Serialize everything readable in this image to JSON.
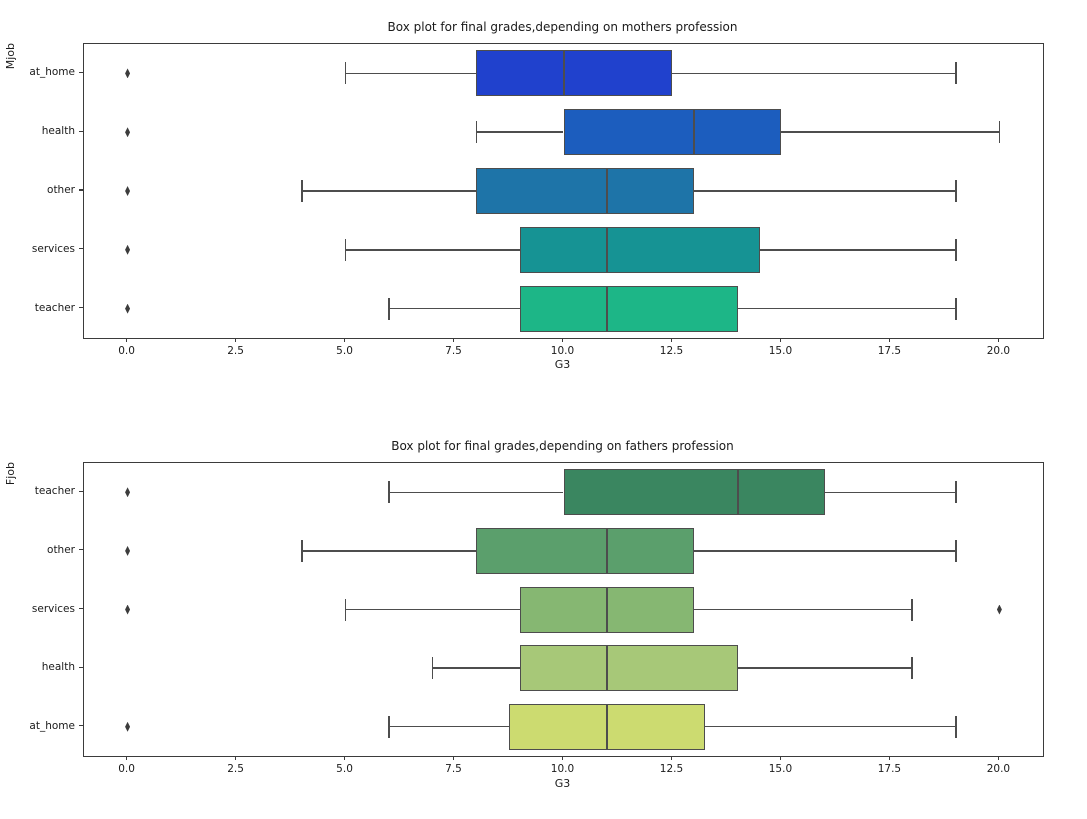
{
  "figure": {
    "background": "#ffffff",
    "spine_color": "#3b3b3b",
    "line_color": "#4d4d4d",
    "flier_color": "#3c3c3c",
    "text_color": "#1a1a1a"
  },
  "chart_data": [
    {
      "type": "boxplot",
      "orientation": "horizontal",
      "title": "Box plot for final grades,depending on mothers profession",
      "xlabel": "G3",
      "ylabel": "Mjob",
      "xlim": [
        -1,
        21
      ],
      "grid": false,
      "legend": "none",
      "xtick_labels": [
        "0.0",
        "2.5",
        "5.0",
        "7.5",
        "10.0",
        "12.5",
        "15.0",
        "17.5",
        "20.0"
      ],
      "xtick_values": [
        0,
        2.5,
        5,
        7.5,
        10,
        12.5,
        15,
        17.5,
        20
      ],
      "categories": [
        "at_home",
        "health",
        "other",
        "services",
        "teacher"
      ],
      "series": [
        {
          "category": "at_home",
          "whisker_low": 5,
          "q1": 8,
          "median": 10,
          "q3": 12.5,
          "whisker_high": 19,
          "outliers": [
            0
          ],
          "color": "#2041cd"
        },
        {
          "category": "health",
          "whisker_low": 8,
          "q1": 10,
          "median": 13,
          "q3": 15,
          "whisker_high": 20,
          "outliers": [
            0
          ],
          "color": "#1c5dbe"
        },
        {
          "category": "other",
          "whisker_low": 4,
          "q1": 8,
          "median": 11,
          "q3": 13,
          "whisker_high": 19,
          "outliers": [
            0
          ],
          "color": "#1e74a8"
        },
        {
          "category": "services",
          "whisker_low": 5,
          "q1": 9,
          "median": 11,
          "q3": 14.5,
          "whisker_high": 19,
          "outliers": [
            0
          ],
          "color": "#169394"
        },
        {
          "category": "teacher",
          "whisker_low": 6,
          "q1": 9,
          "median": 11,
          "q3": 14,
          "whisker_high": 19,
          "outliers": [
            0
          ],
          "color": "#1db687"
        }
      ]
    },
    {
      "type": "boxplot",
      "orientation": "horizontal",
      "title": "Box plot for final grades,depending on fathers profession",
      "xlabel": "G3",
      "ylabel": "Fjob",
      "xlim": [
        -1,
        21
      ],
      "grid": false,
      "legend": "none",
      "xtick_labels": [
        "0.0",
        "2.5",
        "5.0",
        "7.5",
        "10.0",
        "12.5",
        "15.0",
        "17.5",
        "20.0"
      ],
      "xtick_values": [
        0,
        2.5,
        5,
        7.5,
        10,
        12.5,
        15,
        17.5,
        20
      ],
      "categories": [
        "teacher",
        "other",
        "services",
        "health",
        "at_home"
      ],
      "series": [
        {
          "category": "teacher",
          "whisker_low": 6,
          "q1": 10,
          "median": 14,
          "q3": 16,
          "whisker_high": 19,
          "outliers": [
            0
          ],
          "color": "#3a8660"
        },
        {
          "category": "other",
          "whisker_low": 4,
          "q1": 8,
          "median": 11,
          "q3": 13,
          "whisker_high": 19,
          "outliers": [
            0
          ],
          "color": "#5b9f6c"
        },
        {
          "category": "services",
          "whisker_low": 5,
          "q1": 9,
          "median": 11,
          "q3": 13,
          "whisker_high": 18,
          "outliers": [
            0,
            20
          ],
          "color": "#86b772"
        },
        {
          "category": "health",
          "whisker_low": 7,
          "q1": 9,
          "median": 11,
          "q3": 14,
          "whisker_high": 18,
          "outliers": [],
          "color": "#a7c878"
        },
        {
          "category": "at_home",
          "whisker_low": 6,
          "q1": 8.75,
          "median": 11,
          "q3": 13.25,
          "whisker_high": 19,
          "outliers": [
            0
          ],
          "color": "#ccdb70"
        }
      ]
    }
  ]
}
